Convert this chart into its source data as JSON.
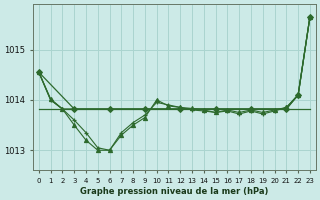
{
  "title": "Graphe pression niveau de la mer (hPa)",
  "bg_color": "#cceae7",
  "grid_color": "#aad4cf",
  "line_color": "#2d6a2d",
  "xlim": [
    -0.5,
    23.5
  ],
  "ylim": [
    1012.6,
    1015.9
  ],
  "yticks": [
    1013,
    1014,
    1015
  ],
  "xticks": [
    0,
    1,
    2,
    3,
    4,
    5,
    6,
    7,
    8,
    9,
    10,
    11,
    12,
    13,
    14,
    15,
    16,
    17,
    18,
    19,
    20,
    21,
    22,
    23
  ],
  "series_flat": {
    "x": [
      0,
      23
    ],
    "y": [
      1013.82,
      1013.82
    ]
  },
  "series_big": {
    "x": [
      0,
      1,
      2,
      3,
      4,
      5,
      6,
      7,
      8,
      9,
      10,
      11,
      12,
      13,
      14,
      15,
      16,
      17,
      18,
      19,
      20,
      21,
      22,
      23
    ],
    "y": [
      1014.55,
      1014.0,
      1013.82,
      1013.82,
      1013.82,
      1013.82,
      1013.82,
      1013.82,
      1013.82,
      1013.82,
      1013.82,
      1013.82,
      1013.82,
      1013.82,
      1013.82,
      1013.82,
      1013.82,
      1013.82,
      1013.82,
      1013.82,
      1013.82,
      1013.82,
      1014.1,
      1015.65
    ]
  },
  "series_dip_cross": {
    "x": [
      0,
      1,
      2,
      3,
      4,
      5,
      6,
      7,
      8,
      9,
      10,
      11,
      12,
      13,
      14,
      15,
      16,
      17,
      18,
      19,
      20,
      21,
      22,
      23
    ],
    "y": [
      1014.55,
      1014.0,
      1013.82,
      1013.6,
      1013.35,
      1013.05,
      1013.0,
      1013.35,
      1013.55,
      1013.7,
      1013.95,
      1013.9,
      1013.85,
      1013.8,
      1013.78,
      1013.75,
      1013.78,
      1013.72,
      1013.78,
      1013.72,
      1013.78,
      1013.85,
      1014.1,
      1015.65
    ]
  },
  "series_dip_tri": {
    "x": [
      0,
      1,
      2,
      3,
      4,
      5,
      6,
      7,
      8,
      9,
      10,
      11,
      12,
      13,
      14,
      15,
      16,
      17,
      18,
      19,
      20,
      21,
      22,
      23
    ],
    "y": [
      1014.55,
      1014.02,
      1013.82,
      1013.5,
      1013.2,
      1013.0,
      1013.0,
      1013.3,
      1013.5,
      1013.65,
      1014.0,
      1013.88,
      1013.85,
      1013.83,
      1013.8,
      1013.75,
      1013.8,
      1013.75,
      1013.8,
      1013.75,
      1013.8,
      1013.85,
      1014.1,
      1015.65
    ]
  },
  "series_sparse": {
    "x": [
      0,
      3,
      6,
      9,
      12,
      15,
      18,
      21,
      22,
      23
    ],
    "y": [
      1014.55,
      1013.82,
      1013.82,
      1013.82,
      1013.82,
      1013.82,
      1013.82,
      1013.82,
      1014.1,
      1015.65
    ]
  }
}
